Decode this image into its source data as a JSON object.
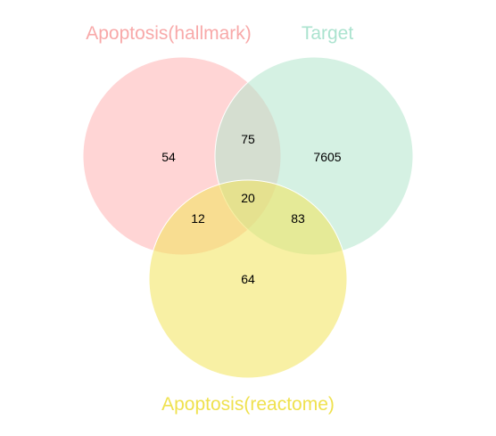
{
  "sets": [
    {
      "name": "Apoptosis(hallmark)",
      "color": "#F8A9A9",
      "fill": "#FFB3B3"
    },
    {
      "name": "Target",
      "color": "#ABE3CF",
      "fill": "#B3E6CC"
    },
    {
      "name": "Apoptosis(reactome)",
      "color": "#EFE14E",
      "fill": "#F2E35A"
    }
  ],
  "regions": {
    "hallmark_only": "54",
    "hallmark_target": "75",
    "target_only": "7605",
    "all_three": "20",
    "hallmark_reactome": "12",
    "target_reactome": "83",
    "reactome_only": "64"
  }
}
